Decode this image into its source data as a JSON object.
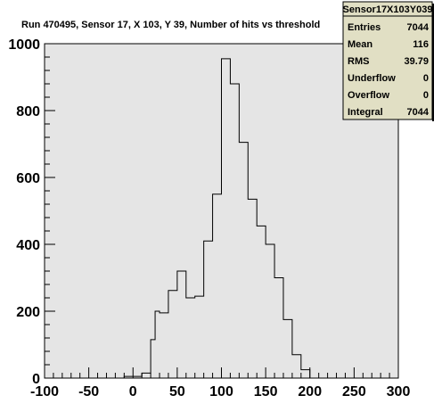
{
  "colors": {
    "plot_background": "#e5e5e5",
    "stats_background": "#e1dfc4",
    "line": "#000000",
    "page_background": "#ffffff"
  },
  "chart_data": {
    "type": "histogram",
    "title": "Run 470495, Sensor 17, X 103, Y 39, Number of hits vs threshold",
    "xlim": [
      -100,
      300
    ],
    "ylim": [
      0,
      1000
    ],
    "x_ticks": [
      -100,
      -50,
      0,
      50,
      100,
      150,
      200,
      250,
      300
    ],
    "y_ticks": [
      0,
      200,
      400,
      600,
      800,
      1000
    ],
    "bin_edges": [
      -10,
      0,
      10,
      20,
      25,
      30,
      40,
      50,
      60,
      70,
      80,
      90,
      100,
      110,
      120,
      130,
      140,
      150,
      160,
      170,
      180,
      190,
      200,
      210
    ],
    "values": [
      5,
      5,
      15,
      115,
      200,
      195,
      262,
      320,
      240,
      245,
      410,
      550,
      955,
      880,
      705,
      535,
      455,
      400,
      300,
      175,
      70,
      25,
      0
    ],
    "grid": false,
    "stats_box": {
      "title": "Sensor17X103Y039",
      "rows": [
        {
          "label": "Entries",
          "value": "7044"
        },
        {
          "label": "Mean",
          "value": "116"
        },
        {
          "label": "RMS",
          "value": "39.79"
        },
        {
          "label": "Underflow",
          "value": "0"
        },
        {
          "label": "Overflow",
          "value": "0"
        },
        {
          "label": "Integral",
          "value": "7044"
        }
      ]
    }
  }
}
